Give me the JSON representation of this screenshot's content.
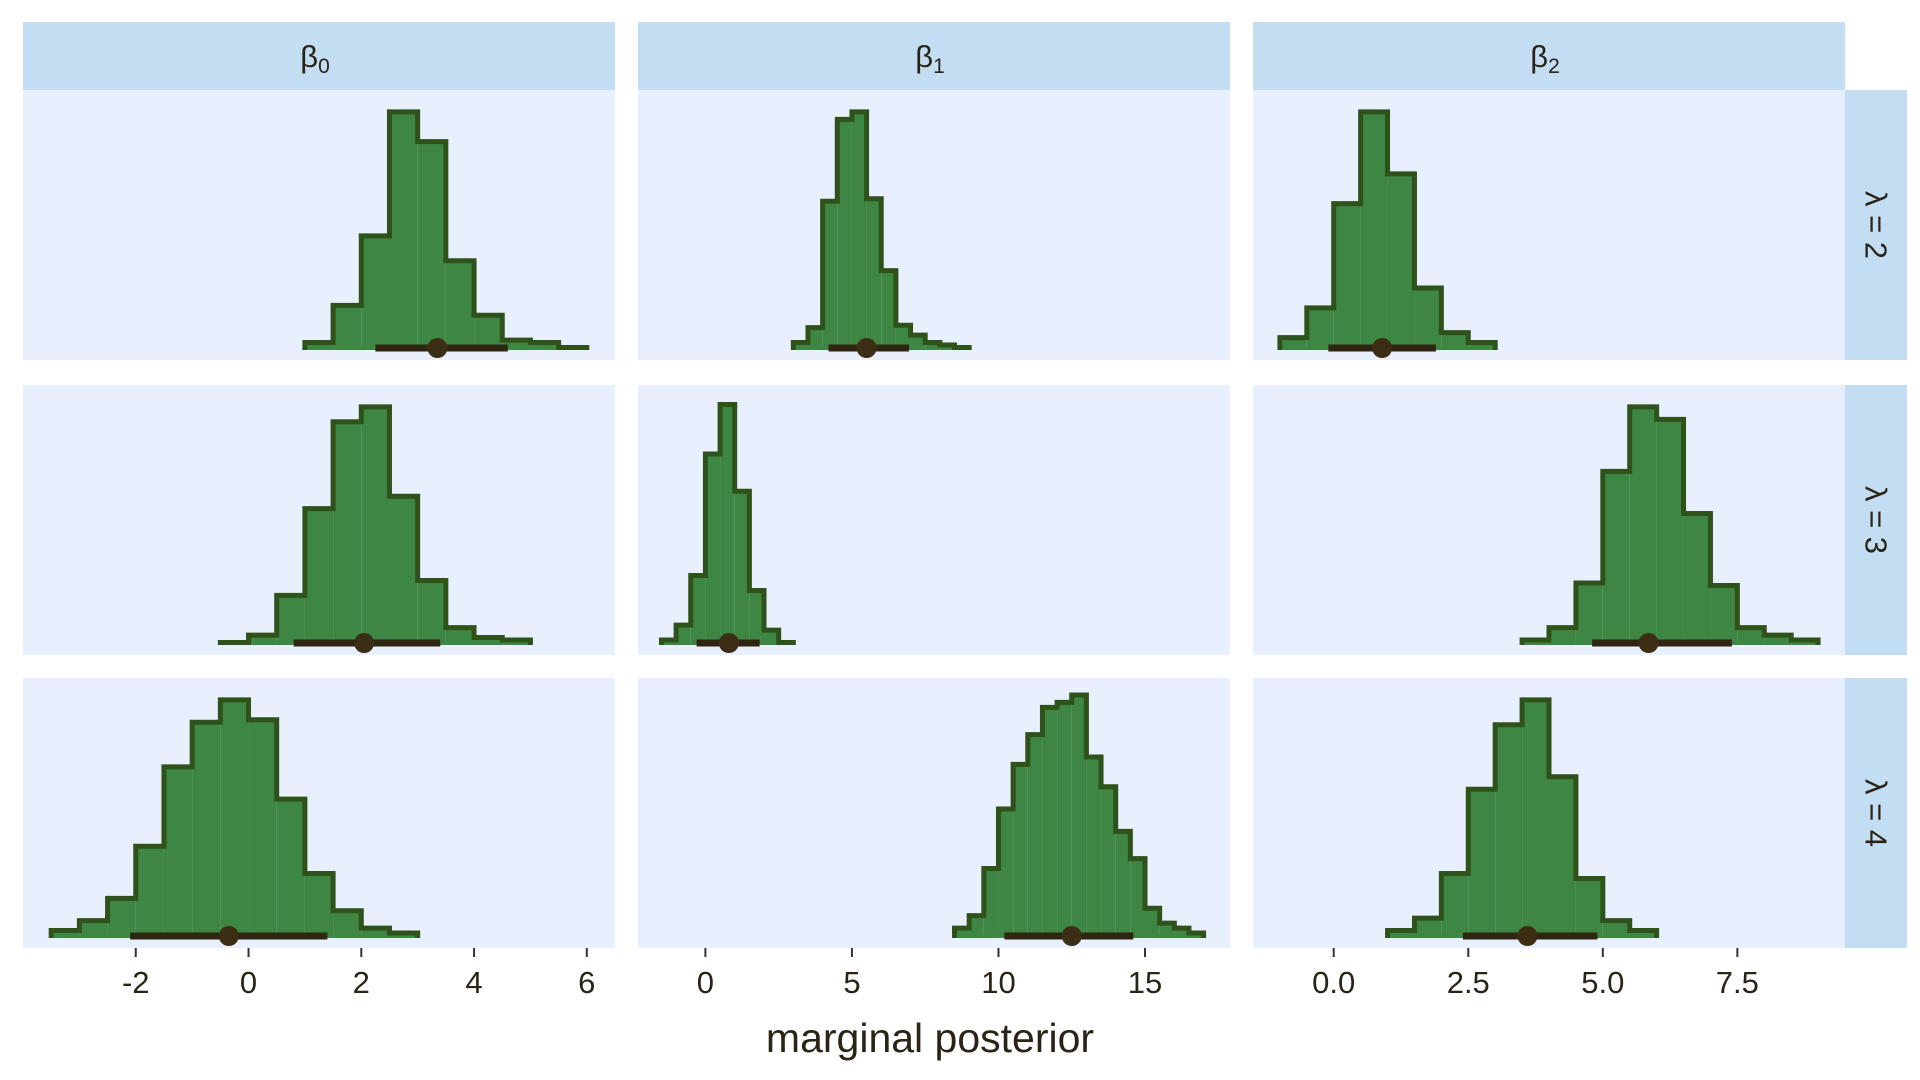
{
  "chart_data": {
    "type": "histogram_facet_grid",
    "xlabel": "marginal posterior",
    "column_strips": [
      {
        "base": "β",
        "sub": "0"
      },
      {
        "base": "β",
        "sub": "1"
      },
      {
        "base": "β",
        "sub": "2"
      }
    ],
    "row_strips": [
      "λ = 2",
      "λ = 3",
      "λ = 4"
    ],
    "columns": [
      {
        "xlim": [
          -4.0,
          6.5
        ],
        "ticks": [
          -2,
          0,
          2,
          4,
          6
        ],
        "tick_labels": [
          "-2",
          "0",
          "2",
          "4",
          "6"
        ]
      },
      {
        "xlim": [
          -2.3,
          17.9
        ],
        "ticks": [
          0,
          5,
          10,
          15
        ],
        "tick_labels": [
          "0",
          "5",
          "10",
          "15"
        ]
      },
      {
        "xlim": [
          -1.5,
          9.5
        ],
        "ticks": [
          0.0,
          2.5,
          5.0,
          7.5
        ],
        "tick_labels": [
          "0.0",
          "2.5",
          "5.0",
          "7.5"
        ]
      }
    ],
    "panels": [
      {
        "row": 0,
        "col": 0,
        "edges": [
          1.0,
          1.5,
          2.0,
          2.5,
          3.0,
          3.5,
          4.0,
          4.5,
          5.0,
          5.5,
          6.0
        ],
        "heights": [
          0.03,
          0.18,
          0.46,
          0.96,
          0.84,
          0.36,
          0.14,
          0.04,
          0.03,
          0.01
        ],
        "point": 3.35,
        "interval": [
          2.25,
          4.6
        ]
      },
      {
        "row": 0,
        "col": 1,
        "edges": [
          3.0,
          3.5,
          4.0,
          4.5,
          5.0,
          5.5,
          6.0,
          6.5,
          7.0,
          7.5,
          8.0,
          8.5,
          9.0
        ],
        "heights": [
          0.03,
          0.09,
          0.6,
          0.93,
          0.96,
          0.61,
          0.32,
          0.1,
          0.06,
          0.03,
          0.02,
          0.01
        ],
        "point": 5.5,
        "interval": [
          4.2,
          6.95
        ]
      },
      {
        "row": 0,
        "col": 2,
        "edges": [
          -1.0,
          -0.5,
          0.0,
          0.5,
          1.0,
          1.5,
          2.0,
          2.5,
          3.0
        ],
        "heights": [
          0.05,
          0.17,
          0.59,
          0.96,
          0.71,
          0.25,
          0.07,
          0.03
        ],
        "point": 0.9,
        "interval": [
          -0.1,
          1.9
        ]
      },
      {
        "row": 1,
        "col": 0,
        "edges": [
          -0.5,
          0.0,
          0.5,
          1.0,
          1.5,
          2.0,
          2.5,
          3.0,
          3.5,
          4.0,
          4.5,
          5.0
        ],
        "heights": [
          0.01,
          0.04,
          0.2,
          0.55,
          0.9,
          0.96,
          0.6,
          0.26,
          0.07,
          0.03,
          0.02
        ],
        "point": 2.05,
        "interval": [
          0.8,
          3.4
        ]
      },
      {
        "row": 1,
        "col": 1,
        "edges": [
          -1.5,
          -1.0,
          -0.5,
          0.0,
          0.5,
          1.0,
          1.5,
          2.0,
          2.5,
          3.0
        ],
        "heights": [
          0.02,
          0.08,
          0.28,
          0.77,
          0.97,
          0.62,
          0.22,
          0.06,
          0.01
        ],
        "point": 0.8,
        "interval": [
          -0.3,
          1.85
        ]
      },
      {
        "row": 1,
        "col": 2,
        "edges": [
          3.5,
          4.0,
          4.5,
          5.0,
          5.5,
          6.0,
          6.5,
          7.0,
          7.5,
          8.0,
          8.5,
          9.0
        ],
        "heights": [
          0.02,
          0.07,
          0.25,
          0.7,
          0.96,
          0.91,
          0.53,
          0.24,
          0.07,
          0.04,
          0.02
        ],
        "point": 5.85,
        "interval": [
          4.8,
          7.4
        ]
      },
      {
        "row": 2,
        "col": 0,
        "edges": [
          -3.5,
          -3.0,
          -2.5,
          -2.0,
          -1.5,
          -1.0,
          -0.5,
          0.0,
          0.5,
          1.0,
          1.5,
          2.0,
          2.5,
          3.0
        ],
        "heights": [
          0.03,
          0.07,
          0.16,
          0.37,
          0.69,
          0.87,
          0.96,
          0.88,
          0.56,
          0.26,
          0.11,
          0.04,
          0.02
        ],
        "point": -0.35,
        "interval": [
          -2.1,
          1.4
        ]
      },
      {
        "row": 2,
        "col": 1,
        "edges": [
          8.5,
          9.0,
          9.5,
          10.0,
          10.5,
          11.0,
          11.5,
          12.0,
          12.5,
          13.0,
          13.5,
          14.0,
          14.5,
          15.0,
          15.5,
          16.0,
          16.5,
          17.0
        ],
        "heights": [
          0.04,
          0.09,
          0.28,
          0.52,
          0.7,
          0.82,
          0.93,
          0.95,
          0.98,
          0.73,
          0.61,
          0.43,
          0.32,
          0.12,
          0.06,
          0.04,
          0.02
        ],
        "point": 12.5,
        "interval": [
          10.2,
          14.6
        ]
      },
      {
        "row": 2,
        "col": 2,
        "edges": [
          1.0,
          1.5,
          2.0,
          2.5,
          3.0,
          3.5,
          4.0,
          4.5,
          5.0,
          5.5,
          6.0
        ],
        "heights": [
          0.03,
          0.08,
          0.26,
          0.6,
          0.86,
          0.96,
          0.65,
          0.24,
          0.07,
          0.03
        ],
        "point": 3.6,
        "interval": [
          2.4,
          4.9
        ]
      }
    ],
    "colors": {
      "panel_bg": "#e8efff",
      "strip_bg": "#c3ddf3",
      "bar_fill": "#3e8644",
      "bar_outline": "#2e5219",
      "baseline": "#55b07a",
      "interval": "#2f2611",
      "point": "#3b2e14",
      "text": "#2a2416"
    }
  }
}
